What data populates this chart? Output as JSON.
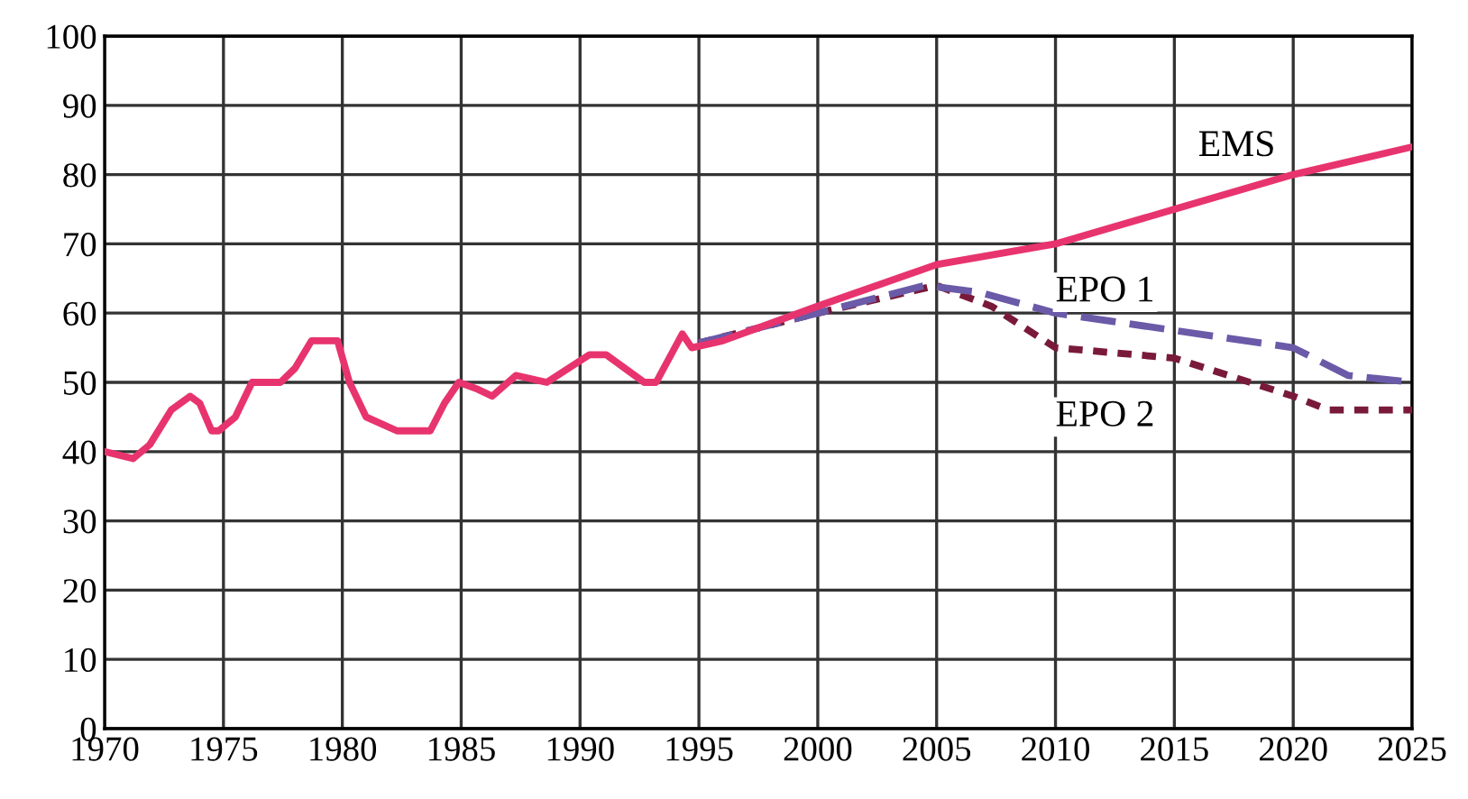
{
  "chart_data": {
    "type": "line",
    "xlim": [
      1970,
      2025
    ],
    "ylim": [
      0,
      100
    ],
    "xticks": [
      1970,
      1975,
      1980,
      1985,
      1990,
      1995,
      2000,
      2005,
      2010,
      2015,
      2020,
      2025
    ],
    "yticks": [
      0,
      10,
      20,
      30,
      40,
      50,
      60,
      70,
      80,
      90,
      100
    ],
    "grid": true,
    "legend": false,
    "series": [
      {
        "name": "EMS",
        "color": "#e8346e",
        "line_style": "solid",
        "x": [
          1970,
          1971.2,
          1971.9,
          1972.8,
          1973.6,
          1974,
          1974.5,
          1974.8,
          1975.5,
          1976.2,
          1977.4,
          1978,
          1978.7,
          1979.8,
          1980.3,
          1981,
          1982.3,
          1983.7,
          1984.3,
          1984.9,
          1985.7,
          1986.3,
          1987.3,
          1988.6,
          1990.4,
          1991.1,
          1992.7,
          1993.2,
          1994.3,
          1994.7,
          1996,
          2000,
          2005,
          2010,
          2015,
          2020,
          2025
        ],
        "values": [
          40,
          39,
          41,
          46,
          48,
          47,
          43,
          43,
          45,
          50,
          50,
          52,
          56,
          56,
          50,
          45,
          43,
          43,
          47,
          50,
          49,
          48,
          51,
          50,
          54,
          54,
          50,
          50,
          57,
          55,
          56,
          61,
          67,
          70,
          75,
          80,
          84
        ]
      },
      {
        "name": "EPO 1",
        "color": "#6a5aa8",
        "line_style": "dashed",
        "x": [
          1995,
          2000,
          2004.5,
          2006.8,
          2010,
          2015,
          2020,
          2022.3,
          2025
        ],
        "values": [
          55.7,
          60,
          64,
          63,
          60,
          57.5,
          55,
          51,
          50
        ]
      },
      {
        "name": "EPO 2",
        "color": "#7a1a3a",
        "line_style": "dotted",
        "x": [
          1995,
          2000,
          2005,
          2007.3,
          2010,
          2015,
          2020,
          2021.5,
          2025
        ],
        "values": [
          55.7,
          60,
          64,
          61,
          55,
          53.5,
          48,
          46,
          46
        ]
      }
    ]
  }
}
